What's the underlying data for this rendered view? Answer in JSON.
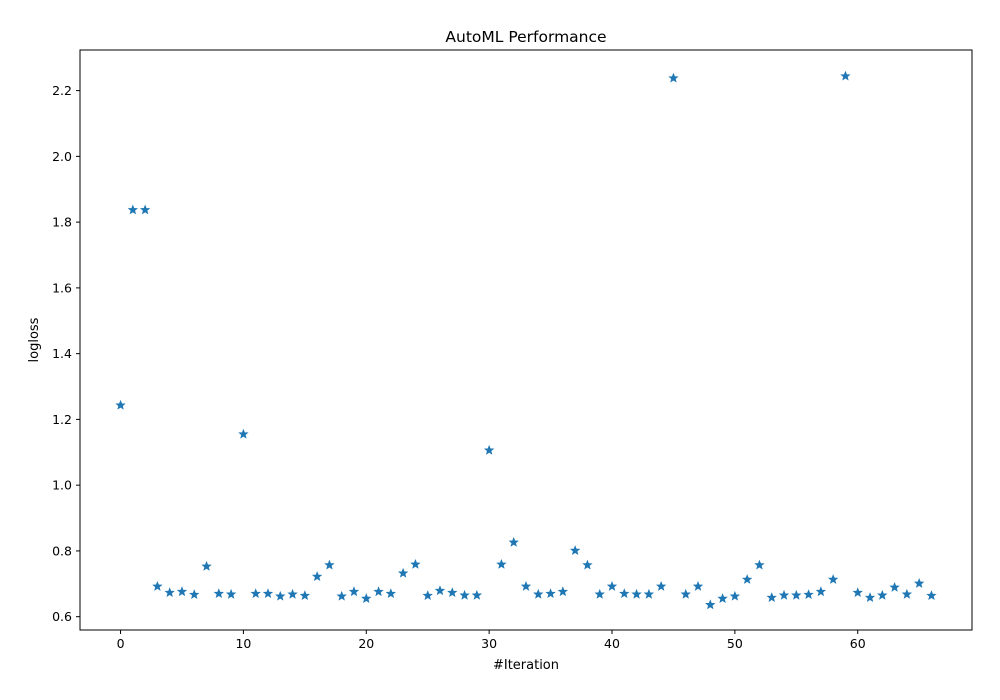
{
  "chart_data": {
    "type": "scatter",
    "title": "AutoML Performance",
    "xlabel": "#Iteration",
    "ylabel": "logloss",
    "marker": "star",
    "color": "#1f77b4",
    "xlim": [
      -3.3,
      69.3
    ],
    "ylim": [
      0.5595,
      2.3235
    ],
    "xticks": [
      0,
      10,
      20,
      30,
      40,
      50,
      60
    ],
    "yticks": [
      0.6,
      0.8,
      1.0,
      1.2,
      1.4,
      1.6,
      1.8,
      2.0,
      2.2
    ],
    "grid": false,
    "x": [
      0,
      1,
      2,
      3,
      4,
      5,
      6,
      7,
      8,
      9,
      10,
      11,
      12,
      13,
      14,
      15,
      16,
      17,
      18,
      19,
      20,
      21,
      22,
      23,
      24,
      25,
      26,
      27,
      28,
      29,
      30,
      31,
      32,
      33,
      34,
      35,
      36,
      37,
      38,
      39,
      40,
      41,
      42,
      43,
      44,
      45,
      46,
      47,
      48,
      49,
      50,
      51,
      52,
      53,
      54,
      55,
      56,
      57,
      58,
      59,
      60,
      61,
      62,
      63,
      64,
      65,
      66
    ],
    "y": [
      1.243,
      1.837,
      1.837,
      0.692,
      0.673,
      0.676,
      0.667,
      0.753,
      0.67,
      0.668,
      1.155,
      0.67,
      0.67,
      0.662,
      0.668,
      0.664,
      0.722,
      0.757,
      0.662,
      0.676,
      0.655,
      0.676,
      0.67,
      0.732,
      0.759,
      0.664,
      0.679,
      0.673,
      0.665,
      0.665,
      1.106,
      0.759,
      0.826,
      0.692,
      0.668,
      0.67,
      0.676,
      0.801,
      0.757,
      0.668,
      0.692,
      0.67,
      0.668,
      0.668,
      0.692,
      2.238,
      0.668,
      0.692,
      0.636,
      0.655,
      0.662,
      0.713,
      0.757,
      0.658,
      0.665,
      0.665,
      0.667,
      0.676,
      0.713,
      2.244,
      0.673,
      0.658,
      0.665,
      0.689,
      0.668,
      0.701,
      0.664
    ]
  }
}
